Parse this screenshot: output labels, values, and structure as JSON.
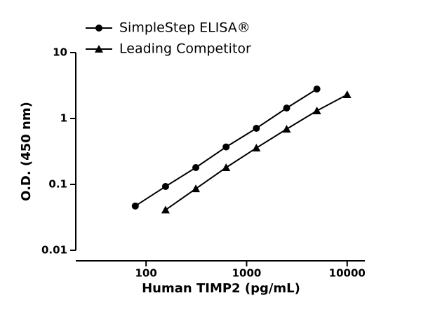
{
  "chart_data": {
    "type": "line",
    "log_x": true,
    "log_y": true,
    "xlabel": "Human TIMP2 (pg/mL)",
    "ylabel": "O.D. (450 nm)",
    "xlim": [
      20,
      15000
    ],
    "ylim": [
      0.01,
      10
    ],
    "xticks": [
      100,
      1000,
      10000
    ],
    "yticks": [
      0.01,
      0.1,
      1,
      10
    ],
    "legend": "top-left",
    "series": [
      {
        "name": "SimpleStep ELISA®",
        "color": "#000000",
        "marker": "circle",
        "x": [
          78.125,
          156.25,
          312.5,
          625,
          1250,
          2500,
          5000
        ],
        "values": [
          0.047,
          0.093,
          0.18,
          0.37,
          0.71,
          1.44,
          2.8
        ]
      },
      {
        "name": "Leading Competitor",
        "color": "#000000",
        "marker": "triangle",
        "x": [
          156.25,
          312.5,
          625,
          1250,
          2500,
          5000,
          10000
        ],
        "values": [
          0.041,
          0.086,
          0.18,
          0.357,
          0.69,
          1.31,
          2.3
        ]
      }
    ]
  }
}
